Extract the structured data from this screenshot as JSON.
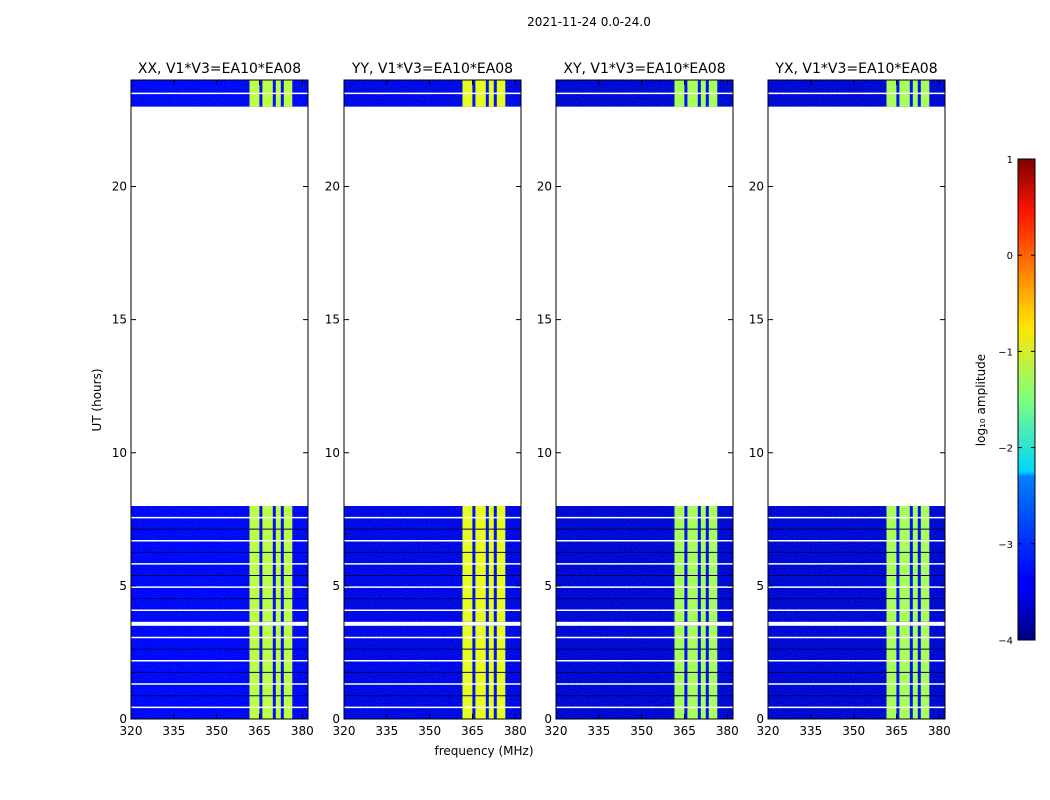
{
  "figure_title": "2021-11-24 0.0-24.0",
  "chart_data": {
    "type": "heatmap",
    "title": "2021-11-24 0.0-24.0",
    "xlabel": "frequency (MHz)",
    "ylabel": "UT (hours)",
    "xlim": [
      320,
      382
    ],
    "ylim": [
      0,
      24
    ],
    "xticks": [
      320,
      335,
      350,
      365,
      380
    ],
    "yticks": [
      0,
      5,
      10,
      15,
      20
    ],
    "colormap": "jet",
    "colorbar": {
      "label": "log₁₀ amplitude",
      "range": [
        -4,
        1
      ],
      "ticks": [
        1,
        0,
        -1,
        -2,
        -3,
        -4
      ]
    },
    "data_segments_hours": [
      [
        0,
        3.5
      ],
      [
        3.65,
        8.0
      ],
      [
        23.0,
        24.0
      ]
    ],
    "band_edges_mhz": [
      361.5,
      376.5
    ],
    "band_gaps_mhz": [
      365.5,
      370.2,
      373.0
    ],
    "panels": [
      {
        "title": "XX, V1*V3=EA10*EA08",
        "band_log_amp": -1.2,
        "background_log_amp": -3.4
      },
      {
        "title": "YY, V1*V3=EA10*EA08",
        "band_log_amp": -1.0,
        "background_log_amp": -3.5
      },
      {
        "title": "XY, V1*V3=EA10*EA08",
        "band_log_amp": -1.3,
        "background_log_amp": -3.6
      },
      {
        "title": "YX, V1*V3=EA10*EA08",
        "band_log_amp": -1.3,
        "background_log_amp": -3.6
      }
    ]
  }
}
